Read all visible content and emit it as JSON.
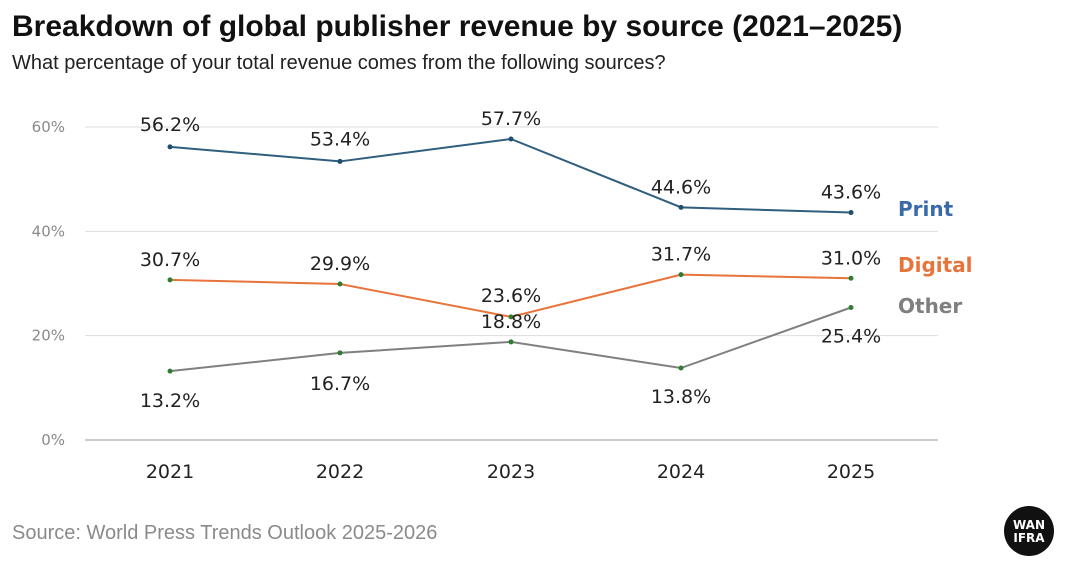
{
  "header": {
    "title": "Breakdown of global publisher revenue by source (2021–2025)",
    "subtitle": "What percentage of your total revenue comes from the following sources?"
  },
  "footer": {
    "source": "Source: World Press Trends Outlook 2025-2026",
    "logo_text_top": "WAN",
    "logo_text_bottom": "IFRA"
  },
  "chart_data": {
    "type": "line",
    "title": "Breakdown of global publisher revenue by source (2021–2025)",
    "subtitle": "What percentage of your total revenue comes from the following sources?",
    "x": [
      "2021",
      "2022",
      "2023",
      "2024",
      "2025"
    ],
    "ylim": [
      0,
      60
    ],
    "yticks": [
      0,
      20,
      40,
      60
    ],
    "ytick_labels": [
      "0%",
      "20%",
      "40%",
      "60%"
    ],
    "grid": true,
    "legend": "right, inline labels at line ends",
    "series": [
      {
        "name": "Print",
        "color": "#2f5f7f",
        "label_color": "#3a6aa8",
        "values": [
          56.2,
          53.4,
          57.7,
          44.6,
          43.6
        ],
        "labels": [
          "56.2%",
          "53.4%",
          "57.7%",
          "44.6%",
          "43.6%"
        ]
      },
      {
        "name": "Digital",
        "color": "#e8743b",
        "label_color": "#e8743b",
        "values": [
          30.7,
          29.9,
          23.6,
          31.7,
          31.0
        ],
        "labels": [
          "30.7%",
          "29.9%",
          "23.6%",
          "31.7%",
          "31.0%"
        ]
      },
      {
        "name": "Other",
        "color": "#808080",
        "label_color": "#7f7f7f",
        "values": [
          13.2,
          16.7,
          18.8,
          13.8,
          25.4
        ],
        "labels": [
          "13.2%",
          "16.7%",
          "18.8%",
          "13.8%",
          "25.4%"
        ]
      }
    ],
    "marker_color": "#2e7d32"
  }
}
